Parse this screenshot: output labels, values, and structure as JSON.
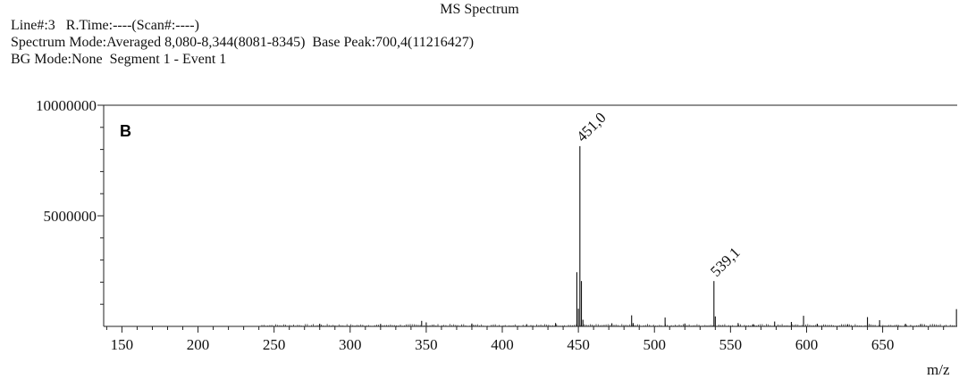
{
  "header": {
    "line": "Line#:3",
    "rtime": "R.Time:----(Scan#:----)",
    "spectrum_mode": "Spectrum Mode:Averaged 8,080-8,344(8081-8345)",
    "base_peak": "Base Peak:700,4(11216427)",
    "bg_mode": "BG Mode:None",
    "segment": "Segment 1 - Event 1"
  },
  "chart_data": {
    "type": "bar",
    "title": "MS Spectrum",
    "panel_label": "B",
    "xlabel": "m/z",
    "ylabel": "",
    "xlim": [
      138,
      699
    ],
    "ylim": [
      0,
      10000000
    ],
    "x_ticks": [
      150,
      200,
      250,
      300,
      350,
      400,
      450,
      500,
      550,
      600,
      650
    ],
    "y_ticks": [
      5000000,
      10000000
    ],
    "y_tick_labels": [
      "5000000",
      "10000000"
    ],
    "grid": false,
    "peaks": [
      {
        "mz": 449.0,
        "intensity": 2450000
      },
      {
        "mz": 450.0,
        "intensity": 800000
      },
      {
        "mz": 451.0,
        "intensity": 8150000,
        "label": "451,0"
      },
      {
        "mz": 452.0,
        "intensity": 2050000
      },
      {
        "mz": 453.0,
        "intensity": 300000
      },
      {
        "mz": 485.0,
        "intensity": 500000
      },
      {
        "mz": 486.0,
        "intensity": 150000
      },
      {
        "mz": 507.0,
        "intensity": 400000
      },
      {
        "mz": 539.1,
        "intensity": 2050000,
        "label": "539,1"
      },
      {
        "mz": 540.0,
        "intensity": 450000
      },
      {
        "mz": 555.0,
        "intensity": 150000
      },
      {
        "mz": 579.0,
        "intensity": 220000
      },
      {
        "mz": 590.0,
        "intensity": 200000
      },
      {
        "mz": 598.0,
        "intensity": 480000
      },
      {
        "mz": 607.0,
        "intensity": 120000
      },
      {
        "mz": 640.0,
        "intensity": 420000
      },
      {
        "mz": 648.0,
        "intensity": 280000
      },
      {
        "mz": 665.0,
        "intensity": 120000
      },
      {
        "mz": 698.5,
        "intensity": 780000
      },
      {
        "mz": 347.0,
        "intensity": 250000
      },
      {
        "mz": 350.0,
        "intensity": 180000
      },
      {
        "mz": 280.0,
        "intensity": 120000
      },
      {
        "mz": 320.0,
        "intensity": 110000
      },
      {
        "mz": 380.0,
        "intensity": 130000
      },
      {
        "mz": 435.0,
        "intensity": 150000
      },
      {
        "mz": 416.0,
        "intensity": 100000
      },
      {
        "mz": 472.0,
        "intensity": 140000
      },
      {
        "mz": 520.0,
        "intensity": 130000
      },
      {
        "mz": 565.0,
        "intensity": 100000
      },
      {
        "mz": 627.0,
        "intensity": 100000
      },
      {
        "mz": 675.0,
        "intensity": 110000
      }
    ]
  }
}
